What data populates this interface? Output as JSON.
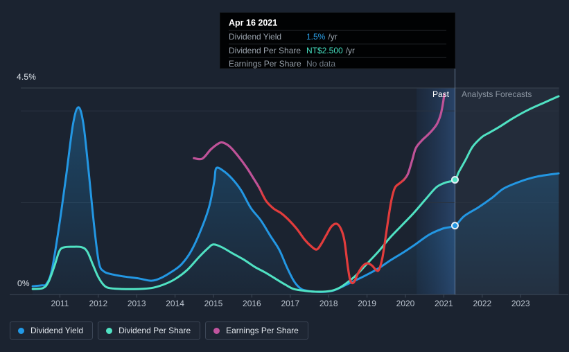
{
  "colors": {
    "background": "#1b2330",
    "dividend_yield": "#2397e3",
    "dividend_per_share": "#50e2c3",
    "eps_pink": "#bf5298",
    "eps_red": "#e23c3c",
    "grid_top": "#3a4450",
    "grid_minor": "#2a3340",
    "axis": "#3f4a59",
    "divider": "rgba(148,173,208,0.38)",
    "forecast_overlay": "rgba(140,165,200,0.07)"
  },
  "tooltip": {
    "date": "Apr 16 2021",
    "rows": [
      {
        "label": "Dividend Yield",
        "value": "1.5%",
        "suffix": "/yr",
        "color": "#2ba0e8"
      },
      {
        "label": "Dividend Per Share",
        "value": "NT$2.500",
        "suffix": "/yr",
        "color": "#46dfc0"
      },
      {
        "label": "Earnings Per Share",
        "value": "No data",
        "suffix": "",
        "color": "#6e7883"
      }
    ]
  },
  "annotations": {
    "past_label": "Past",
    "forecast_label": "Analysts Forecasts"
  },
  "axis": {
    "y_top_label": "4.5%",
    "y_bottom_label": "0%",
    "x_ticks": [
      2011,
      2012,
      2013,
      2014,
      2015,
      2016,
      2017,
      2018,
      2019,
      2020,
      2021,
      2022,
      2023
    ]
  },
  "legend": [
    {
      "label": "Dividend Yield",
      "color": "#2299e6"
    },
    {
      "label": "Dividend Per Share",
      "color": "#50e2c3"
    },
    {
      "label": "Earnings Per Share",
      "color": "#c1549e"
    }
  ],
  "chart_data": {
    "type": "line",
    "title": "Dividend history and forecast",
    "x_range": [
      2010.25,
      2024.0
    ],
    "y_range": [
      0,
      4.5
    ],
    "grid_values": [
      4.5,
      4,
      2
    ],
    "divider_year": 2021.29,
    "highlight_band": [
      2020.29,
      2021.29
    ],
    "legend_position": "bottom-left",
    "series": [
      {
        "name": "Dividend Yield",
        "unit": "%",
        "color": "#2397e3",
        "area": true,
        "marker": {
          "year": 2021.29,
          "value": 1.5
        },
        "points": [
          [
            2010.29,
            0.18
          ],
          [
            2010.52,
            0.2
          ],
          [
            2010.65,
            0.23
          ],
          [
            2010.79,
            0.53
          ],
          [
            2010.97,
            1.43
          ],
          [
            2011.16,
            2.57
          ],
          [
            2011.34,
            3.7
          ],
          [
            2011.48,
            4.08
          ],
          [
            2011.61,
            3.73
          ],
          [
            2011.75,
            2.67
          ],
          [
            2011.9,
            1.43
          ],
          [
            2012.02,
            0.68
          ],
          [
            2012.15,
            0.5
          ],
          [
            2012.36,
            0.44
          ],
          [
            2012.69,
            0.39
          ],
          [
            2013.05,
            0.35
          ],
          [
            2013.38,
            0.3
          ],
          [
            2013.63,
            0.36
          ],
          [
            2013.92,
            0.5
          ],
          [
            2014.17,
            0.66
          ],
          [
            2014.42,
            0.95
          ],
          [
            2014.67,
            1.4
          ],
          [
            2014.89,
            1.92
          ],
          [
            2015.02,
            2.46
          ],
          [
            2015.07,
            2.75
          ],
          [
            2015.25,
            2.7
          ],
          [
            2015.49,
            2.52
          ],
          [
            2015.72,
            2.27
          ],
          [
            2015.97,
            1.89
          ],
          [
            2016.23,
            1.62
          ],
          [
            2016.48,
            1.28
          ],
          [
            2016.71,
            0.98
          ],
          [
            2016.91,
            0.6
          ],
          [
            2017.09,
            0.3
          ],
          [
            2017.24,
            0.15
          ],
          [
            2017.38,
            0.09
          ],
          [
            2017.65,
            0.06
          ],
          [
            2017.93,
            0.06
          ],
          [
            2018.14,
            0.09
          ],
          [
            2018.38,
            0.18
          ],
          [
            2018.65,
            0.29
          ],
          [
            2018.95,
            0.41
          ],
          [
            2019.28,
            0.56
          ],
          [
            2019.6,
            0.74
          ],
          [
            2019.95,
            0.92
          ],
          [
            2020.27,
            1.1
          ],
          [
            2020.63,
            1.31
          ],
          [
            2020.99,
            1.44
          ],
          [
            2021.29,
            1.5
          ],
          [
            2021.53,
            1.71
          ],
          [
            2021.9,
            1.9
          ],
          [
            2022.26,
            2.11
          ],
          [
            2022.56,
            2.31
          ],
          [
            2022.98,
            2.46
          ],
          [
            2023.43,
            2.57
          ],
          [
            2023.99,
            2.64
          ]
        ]
      },
      {
        "name": "Dividend Per Share",
        "unit": "NT$",
        "color": "#50e2c3",
        "area": false,
        "marker": {
          "year": 2021.29,
          "value": 2.5
        },
        "points": [
          [
            2010.29,
            0.12
          ],
          [
            2010.56,
            0.14
          ],
          [
            2010.7,
            0.27
          ],
          [
            2010.85,
            0.6
          ],
          [
            2010.99,
            0.95
          ],
          [
            2011.12,
            1.03
          ],
          [
            2011.34,
            1.04
          ],
          [
            2011.57,
            1.03
          ],
          [
            2011.71,
            0.94
          ],
          [
            2011.86,
            0.65
          ],
          [
            2012.0,
            0.38
          ],
          [
            2012.15,
            0.2
          ],
          [
            2012.29,
            0.14
          ],
          [
            2012.6,
            0.12
          ],
          [
            2013.05,
            0.12
          ],
          [
            2013.38,
            0.14
          ],
          [
            2013.68,
            0.21
          ],
          [
            2013.99,
            0.33
          ],
          [
            2014.31,
            0.53
          ],
          [
            2014.64,
            0.83
          ],
          [
            2014.86,
            1.01
          ],
          [
            2015.0,
            1.09
          ],
          [
            2015.22,
            1.03
          ],
          [
            2015.51,
            0.89
          ],
          [
            2015.79,
            0.76
          ],
          [
            2016.08,
            0.6
          ],
          [
            2016.37,
            0.47
          ],
          [
            2016.66,
            0.32
          ],
          [
            2016.88,
            0.21
          ],
          [
            2017.09,
            0.12
          ],
          [
            2017.38,
            0.08
          ],
          [
            2017.74,
            0.06
          ],
          [
            2018.07,
            0.08
          ],
          [
            2018.29,
            0.15
          ],
          [
            2018.5,
            0.27
          ],
          [
            2018.74,
            0.44
          ],
          [
            2019.01,
            0.68
          ],
          [
            2019.31,
            0.95
          ],
          [
            2019.6,
            1.24
          ],
          [
            2019.91,
            1.51
          ],
          [
            2020.22,
            1.78
          ],
          [
            2020.52,
            2.07
          ],
          [
            2020.81,
            2.34
          ],
          [
            2021.05,
            2.44
          ],
          [
            2021.29,
            2.5
          ],
          [
            2021.39,
            2.67
          ],
          [
            2021.57,
            2.94
          ],
          [
            2021.75,
            3.22
          ],
          [
            2021.99,
            3.43
          ],
          [
            2022.17,
            3.52
          ],
          [
            2022.44,
            3.65
          ],
          [
            2022.8,
            3.84
          ],
          [
            2023.19,
            4.02
          ],
          [
            2023.61,
            4.18
          ],
          [
            2023.99,
            4.32
          ]
        ]
      },
      {
        "name": "Earnings Per Share",
        "unit": "NT$",
        "color": "#bf5298",
        "area": false,
        "color_segments": [
          {
            "until": 2016.22,
            "color": "#bf5298"
          },
          {
            "until": 2019.98,
            "color": "#e23c3c"
          },
          {
            "until": 2021.01,
            "color": "#bf5298"
          }
        ],
        "points": [
          [
            2014.49,
            2.97
          ],
          [
            2014.71,
            2.96
          ],
          [
            2014.93,
            3.16
          ],
          [
            2015.13,
            3.29
          ],
          [
            2015.25,
            3.31
          ],
          [
            2015.43,
            3.22
          ],
          [
            2015.65,
            3.01
          ],
          [
            2015.87,
            2.76
          ],
          [
            2016.05,
            2.52
          ],
          [
            2016.19,
            2.33
          ],
          [
            2016.37,
            2.04
          ],
          [
            2016.57,
            1.87
          ],
          [
            2016.75,
            1.78
          ],
          [
            2016.93,
            1.65
          ],
          [
            2017.17,
            1.43
          ],
          [
            2017.38,
            1.19
          ],
          [
            2017.56,
            1.04
          ],
          [
            2017.69,
            0.98
          ],
          [
            2017.8,
            1.09
          ],
          [
            2017.93,
            1.28
          ],
          [
            2018.07,
            1.48
          ],
          [
            2018.21,
            1.54
          ],
          [
            2018.32,
            1.43
          ],
          [
            2018.41,
            1.18
          ],
          [
            2018.5,
            0.6
          ],
          [
            2018.57,
            0.29
          ],
          [
            2018.66,
            0.27
          ],
          [
            2018.77,
            0.47
          ],
          [
            2018.9,
            0.63
          ],
          [
            2019.01,
            0.68
          ],
          [
            2019.13,
            0.63
          ],
          [
            2019.24,
            0.53
          ],
          [
            2019.31,
            0.54
          ],
          [
            2019.4,
            0.8
          ],
          [
            2019.49,
            1.28
          ],
          [
            2019.57,
            1.74
          ],
          [
            2019.64,
            2.08
          ],
          [
            2019.73,
            2.33
          ],
          [
            2019.86,
            2.43
          ],
          [
            2019.97,
            2.51
          ],
          [
            2020.07,
            2.64
          ],
          [
            2020.18,
            2.94
          ],
          [
            2020.27,
            3.19
          ],
          [
            2020.42,
            3.35
          ],
          [
            2020.56,
            3.46
          ],
          [
            2020.7,
            3.58
          ],
          [
            2020.83,
            3.73
          ],
          [
            2020.92,
            3.93
          ],
          [
            2020.98,
            4.18
          ],
          [
            2021.01,
            4.36
          ]
        ]
      }
    ]
  }
}
